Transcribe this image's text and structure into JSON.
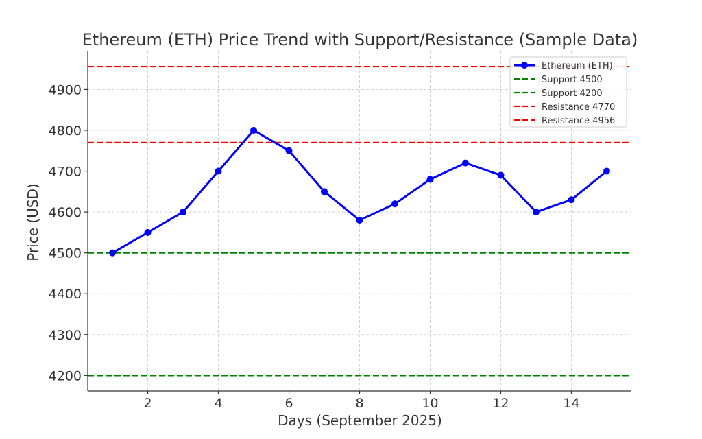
{
  "chart_data": {
    "type": "line",
    "title": "Ethereum (ETH) Price Trend with Support/Resistance (Sample Data)",
    "xlabel": "Days (September 2025)",
    "ylabel": "Price (USD)",
    "xlim": [
      0.3,
      15.7
    ],
    "ylim": [
      4162,
      4993
    ],
    "x_ticks": [
      2,
      4,
      6,
      8,
      10,
      12,
      14
    ],
    "y_ticks": [
      4200,
      4300,
      4400,
      4500,
      4600,
      4700,
      4800,
      4900
    ],
    "grid": true,
    "legend_position": "top-right",
    "series": [
      {
        "name": "Ethereum (ETH)",
        "color": "#0000ff",
        "marker": "circle",
        "x": [
          1,
          2,
          3,
          4,
          5,
          6,
          7,
          8,
          9,
          10,
          11,
          12,
          13,
          14,
          15
        ],
        "values": [
          4500,
          4550,
          4600,
          4700,
          4800,
          4750,
          4650,
          4580,
          4620,
          4680,
          4720,
          4690,
          4600,
          4630,
          4700
        ]
      }
    ],
    "reference_lines": [
      {
        "name": "Support 4500",
        "value": 4500,
        "color": "#008000",
        "style": "dashed"
      },
      {
        "name": "Support 4200",
        "value": 4200,
        "color": "#008000",
        "style": "dashed"
      },
      {
        "name": "Resistance 4770",
        "value": 4770,
        "color": "#ff0000",
        "style": "dashed"
      },
      {
        "name": "Resistance 4956",
        "value": 4956,
        "color": "#ff0000",
        "style": "dashed"
      }
    ]
  }
}
